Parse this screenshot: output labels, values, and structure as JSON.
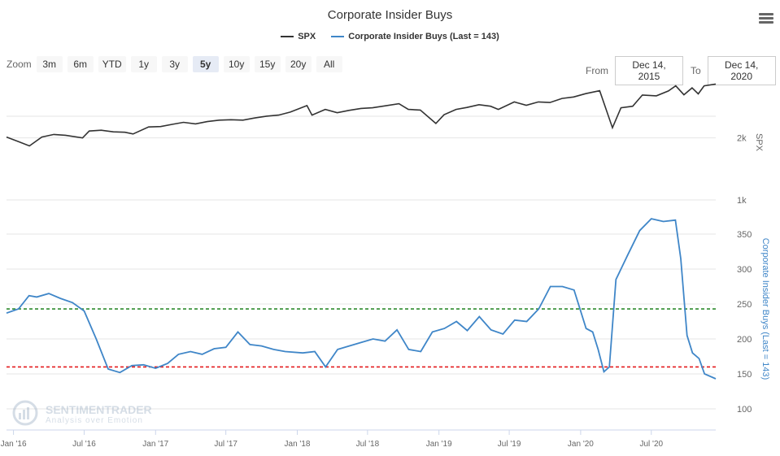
{
  "header": {
    "title": "Corporate Insider Buys"
  },
  "legend": {
    "spx": "SPX",
    "insider": "Corporate Insider Buys (Last = 143)"
  },
  "zoom": {
    "label": "Zoom",
    "buttons": [
      "3m",
      "6m",
      "YTD",
      "1y",
      "3y",
      "5y",
      "10y",
      "15y",
      "20y",
      "All"
    ],
    "active": "5y"
  },
  "range": {
    "from_label": "From",
    "from_value": "Dec 14, 2015",
    "to_label": "To",
    "to_value": "Dec 14, 2020"
  },
  "watermark": {
    "line1": "SENTIMENTRADER",
    "line2": "Analysis over Emotion"
  },
  "colors": {
    "spx": "#333333",
    "insider": "#3f86c8",
    "green_line": "#2e8b2e",
    "red_line": "#e31a1c",
    "grid": "#e6e6e6"
  },
  "chart_data": [
    {
      "type": "line",
      "series": [
        {
          "name": "SPX",
          "x": [
            "2015-12-14",
            "2016-01-14",
            "2016-02-11",
            "2016-03-14",
            "2016-04-14",
            "2016-05-14",
            "2016-06-27",
            "2016-07-14",
            "2016-08-14",
            "2016-09-14",
            "2016-10-14",
            "2016-11-04",
            "2016-12-14",
            "2017-01-14",
            "2017-02-14",
            "2017-03-14",
            "2017-04-14",
            "2017-05-14",
            "2017-06-14",
            "2017-07-14",
            "2017-08-14",
            "2017-09-14",
            "2017-10-14",
            "2017-11-14",
            "2017-12-14",
            "2018-01-26",
            "2018-02-08",
            "2018-03-14",
            "2018-04-14",
            "2018-05-14",
            "2018-06-14",
            "2018-07-14",
            "2018-08-14",
            "2018-09-20",
            "2018-10-14",
            "2018-11-14",
            "2018-12-24",
            "2019-01-14",
            "2019-02-14",
            "2019-03-14",
            "2019-04-14",
            "2019-05-14",
            "2019-06-03",
            "2019-07-14",
            "2019-08-14",
            "2019-09-14",
            "2019-10-14",
            "2019-11-14",
            "2019-12-14",
            "2020-01-14",
            "2020-02-19",
            "2020-03-23",
            "2020-04-14",
            "2020-05-14",
            "2020-06-08",
            "2020-07-14",
            "2020-08-14",
            "2020-09-02",
            "2020-09-23",
            "2020-10-14",
            "2020-10-30",
            "2020-11-14",
            "2020-12-14"
          ],
          "values": [
            2020,
            1920,
            1830,
            2020,
            2080,
            2060,
            2000,
            2160,
            2180,
            2140,
            2130,
            2090,
            2260,
            2270,
            2330,
            2380,
            2340,
            2400,
            2440,
            2450,
            2440,
            2500,
            2550,
            2580,
            2670,
            2870,
            2580,
            2750,
            2650,
            2720,
            2780,
            2800,
            2860,
            2930,
            2750,
            2730,
            2350,
            2590,
            2750,
            2810,
            2900,
            2850,
            2750,
            2990,
            2880,
            2990,
            2970,
            3110,
            3160,
            3280,
            3390,
            2240,
            2800,
            2850,
            3230,
            3200,
            3380,
            3580,
            3240,
            3500,
            3270,
            3580,
            3650
          ]
        }
      ],
      "ylabel": "SPX",
      "y_tick_labels": [
        "2k",
        "1k"
      ],
      "log_scale": true
    },
    {
      "type": "line",
      "series": [
        {
          "name": "Corporate Insider Buys (Last = 143)",
          "x": [
            "2015-12-14",
            "2016-01-14",
            "2016-02-10",
            "2016-03-01",
            "2016-04-01",
            "2016-05-01",
            "2016-06-01",
            "2016-07-01",
            "2016-08-01",
            "2016-09-01",
            "2016-10-01",
            "2016-11-01",
            "2016-12-01",
            "2017-01-01",
            "2017-02-01",
            "2017-03-01",
            "2017-04-01",
            "2017-05-01",
            "2017-06-01",
            "2017-07-01",
            "2017-08-01",
            "2017-09-01",
            "2017-10-01",
            "2017-11-01",
            "2017-12-01",
            "2018-01-15",
            "2018-02-15",
            "2018-03-15",
            "2018-04-15",
            "2018-05-15",
            "2018-06-15",
            "2018-07-15",
            "2018-08-15",
            "2018-09-15",
            "2018-10-15",
            "2018-11-15",
            "2018-12-15",
            "2019-01-15",
            "2019-02-15",
            "2019-03-15",
            "2019-04-15",
            "2019-05-15",
            "2019-06-15",
            "2019-07-15",
            "2019-08-15",
            "2019-09-15",
            "2019-10-15",
            "2019-11-15",
            "2019-12-15",
            "2020-01-15",
            "2020-02-01",
            "2020-02-15",
            "2020-03-01",
            "2020-03-15",
            "2020-04-01",
            "2020-05-01",
            "2020-06-01",
            "2020-07-01",
            "2020-08-01",
            "2020-09-01",
            "2020-09-15",
            "2020-10-01",
            "2020-10-15",
            "2020-11-01",
            "2020-11-15",
            "2020-12-14"
          ],
          "values": [
            237,
            243,
            262,
            260,
            265,
            258,
            252,
            240,
            200,
            157,
            152,
            162,
            163,
            158,
            165,
            178,
            182,
            178,
            186,
            188,
            210,
            192,
            190,
            185,
            182,
            180,
            182,
            160,
            185,
            190,
            195,
            200,
            197,
            213,
            185,
            182,
            210,
            215,
            225,
            212,
            232,
            213,
            207,
            227,
            225,
            243,
            275,
            275,
            270,
            215,
            210,
            185,
            153,
            160,
            285,
            320,
            355,
            372,
            368,
            370,
            315,
            205,
            180,
            172,
            150,
            143
          ]
        }
      ],
      "ylabel": "Corporate Insider Buys (Last = 143)",
      "ylim": [
        100,
        390
      ],
      "y_ticks": [
        100,
        150,
        200,
        250,
        300,
        350
      ],
      "reference_lines": [
        {
          "value": 243,
          "color": "green",
          "style": "dashed"
        },
        {
          "value": 160,
          "color": "red",
          "style": "dashed"
        }
      ]
    }
  ],
  "x_axis": {
    "ticks": [
      {
        "date": "2016-01-01",
        "label": "Jan '16"
      },
      {
        "date": "2016-07-01",
        "label": "Jul '16"
      },
      {
        "date": "2017-01-01",
        "label": "Jan '17"
      },
      {
        "date": "2017-07-01",
        "label": "Jul '17"
      },
      {
        "date": "2018-01-01",
        "label": "Jan '18"
      },
      {
        "date": "2018-07-01",
        "label": "Jul '18"
      },
      {
        "date": "2019-01-01",
        "label": "Jan '19"
      },
      {
        "date": "2019-07-01",
        "label": "Jul '19"
      },
      {
        "date": "2020-01-01",
        "label": "Jan '20"
      },
      {
        "date": "2020-07-01",
        "label": "Jul '20"
      }
    ]
  }
}
